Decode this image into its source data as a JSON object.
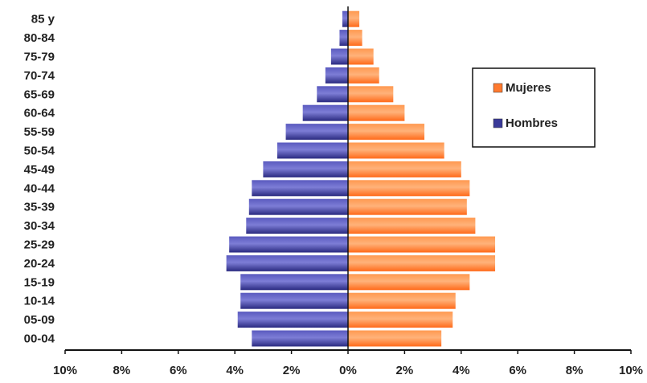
{
  "chart_data": {
    "type": "bar",
    "orientation": "horizontal-population-pyramid",
    "categories": [
      "85 y",
      "80-84",
      "75-79",
      "70-74",
      "65-69",
      "60-64",
      "55-59",
      "50-54",
      "45-49",
      "40-44",
      "35-39",
      "30-34",
      "25-29",
      "20-24",
      "15-19",
      "10-14",
      "05-09",
      "00-04"
    ],
    "series": [
      {
        "name": "Mujeres",
        "color": "#ff7a2f",
        "side": "right",
        "values": [
          0.4,
          0.5,
          0.9,
          1.1,
          1.6,
          2.0,
          2.7,
          3.4,
          4.0,
          4.3,
          4.2,
          4.5,
          5.2,
          5.2,
          4.3,
          3.8,
          3.7,
          3.3
        ]
      },
      {
        "name": "Hombres",
        "color": "#3a3a99",
        "side": "left",
        "values": [
          0.2,
          0.3,
          0.6,
          0.8,
          1.1,
          1.6,
          2.2,
          2.5,
          3.0,
          3.4,
          3.5,
          3.6,
          4.2,
          4.3,
          3.8,
          3.8,
          3.9,
          3.4
        ]
      }
    ],
    "x_ticks": [
      "10%",
      "8%",
      "6%",
      "4%",
      "2%",
      "0%",
      "2%",
      "4%",
      "6%",
      "8%",
      "10%"
    ],
    "xlim": [
      -10,
      10
    ],
    "legend": {
      "placement": "top-right",
      "items": [
        "Mujeres",
        "Hombres"
      ]
    },
    "grid": false,
    "title": "",
    "xlabel": "",
    "ylabel": ""
  }
}
